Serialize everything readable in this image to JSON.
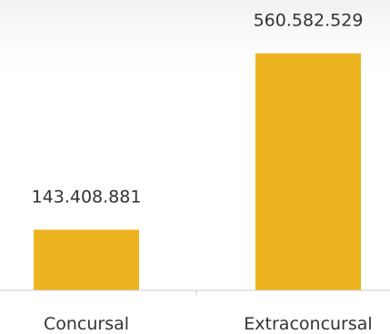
{
  "chart_data": {
    "type": "bar",
    "categories": [
      "Concursal",
      "Extraconcursal"
    ],
    "values": [
      143408881,
      560582529
    ],
    "value_labels": [
      "143.408.881",
      "560.582.529"
    ],
    "ylim": [
      0,
      620000000
    ],
    "grid": false,
    "legend": "none",
    "colors": {
      "bar": "#EEB420",
      "axis": "#cccccc",
      "text": "#333333"
    }
  }
}
